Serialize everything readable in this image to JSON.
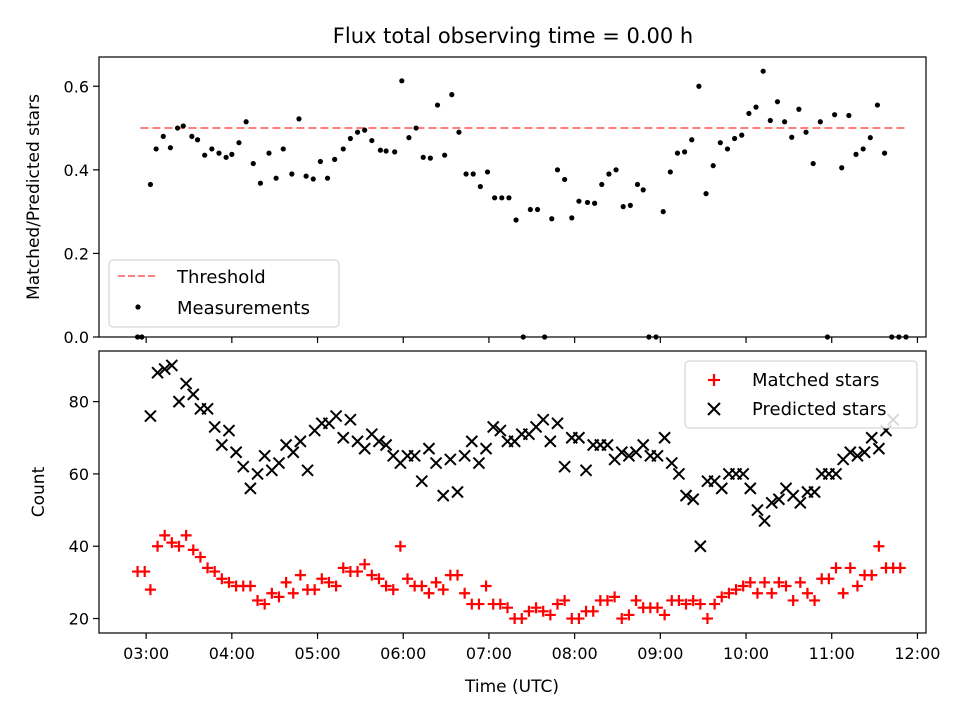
{
  "figure": {
    "title": "Flux total observing time = 0.00 h"
  },
  "chart_data": [
    {
      "type": "scatter",
      "ylabel": "Matched/Predicted stars",
      "xlabel": "",
      "xlim": [
        "02:27",
        "12:06"
      ],
      "ylim": [
        0,
        0.67
      ],
      "yticks": [
        0.0,
        0.2,
        0.4,
        0.6
      ],
      "ytick_labels": [
        "0.0",
        "0.2",
        "0.4",
        "0.6"
      ],
      "xticks": [
        "03:00",
        "04:00",
        "05:00",
        "06:00",
        "07:00",
        "08:00",
        "09:00",
        "10:00",
        "11:00",
        "12:00"
      ],
      "show_xtick_labels": false,
      "grid": false,
      "legend": "lower-left",
      "threshold": {
        "name": "Threshold",
        "value": 0.5,
        "x_range": [
          "02:56",
          "11:53"
        ],
        "color": "#ff7f7f",
        "style": "dashed"
      },
      "series": [
        {
          "name": "Measurements",
          "marker": "dot",
          "color": "#000000",
          "x": [
            "02:54",
            "02:57",
            "03:03",
            "03:07",
            "03:12",
            "03:17",
            "03:22",
            "03:26",
            "03:32",
            "03:36",
            "03:41",
            "03:46",
            "03:51",
            "03:56",
            "04:00",
            "04:05",
            "04:10",
            "04:15",
            "04:20",
            "04:26",
            "04:31",
            "04:36",
            "04:42",
            "04:47",
            "04:52",
            "04:57",
            "05:02",
            "05:07",
            "05:12",
            "05:18",
            "05:23",
            "05:28",
            "05:33",
            "05:38",
            "05:44",
            "05:48",
            "05:54",
            "05:59",
            "06:04",
            "06:09",
            "06:14",
            "06:19",
            "06:24",
            "06:29",
            "06:34",
            "06:39",
            "06:44",
            "06:49",
            "06:54",
            "06:59",
            "07:04",
            "07:09",
            "07:14",
            "07:19",
            "07:24",
            "07:29",
            "07:34",
            "07:39",
            "07:44",
            "07:48",
            "07:53",
            "07:58",
            "08:03",
            "08:09",
            "08:14",
            "08:19",
            "08:24",
            "08:29",
            "08:34",
            "08:39",
            "08:44",
            "08:48",
            "08:52",
            "08:57",
            "09:02",
            "09:07",
            "09:12",
            "09:17",
            "09:22",
            "09:27",
            "09:32",
            "09:37",
            "09:42",
            "09:47",
            "09:52",
            "09:57",
            "10:02",
            "10:07",
            "10:12",
            "10:17",
            "10:22",
            "10:27",
            "10:32",
            "10:37",
            "10:42",
            "10:47",
            "10:52",
            "10:57",
            "11:02",
            "11:07",
            "11:12",
            "11:17",
            "11:22",
            "11:27",
            "11:32",
            "11:37",
            "11:42",
            "11:47",
            "11:52"
          ],
          "y": [
            0.0,
            0.0,
            0.365,
            0.45,
            0.48,
            0.453,
            0.5,
            0.505,
            0.48,
            0.472,
            0.435,
            0.45,
            0.44,
            0.43,
            0.437,
            0.465,
            0.515,
            0.415,
            0.368,
            0.44,
            0.38,
            0.45,
            0.39,
            0.522,
            0.385,
            0.378,
            0.42,
            0.38,
            0.425,
            0.45,
            0.475,
            0.49,
            0.495,
            0.47,
            0.447,
            0.445,
            0.443,
            0.613,
            0.477,
            0.5,
            0.43,
            0.428,
            0.555,
            0.435,
            0.58,
            0.49,
            0.39,
            0.39,
            0.36,
            0.395,
            0.333,
            0.333,
            0.333,
            0.28,
            0.0,
            0.305,
            0.305,
            0.0,
            0.283,
            0.4,
            0.377,
            0.285,
            0.325,
            0.322,
            0.32,
            0.365,
            0.39,
            0.4,
            0.312,
            0.315,
            0.365,
            0.352,
            0.0,
            0.0,
            0.3,
            0.395,
            0.44,
            0.443,
            0.472,
            0.6,
            0.343,
            0.41,
            0.465,
            0.45,
            0.475,
            0.483,
            0.535,
            0.55,
            0.636,
            0.518,
            0.563,
            0.515,
            0.478,
            0.545,
            0.49,
            0.415,
            0.515,
            0.0,
            0.532,
            0.405,
            0.53,
            0.437,
            0.45,
            0.477,
            0.555,
            0.44,
            0.0,
            0.0,
            0.0
          ]
        }
      ]
    },
    {
      "type": "scatter",
      "ylabel": "Count",
      "xlabel": "Time (UTC)",
      "xlim": [
        "02:27",
        "12:06"
      ],
      "ylim": [
        16,
        94
      ],
      "yticks": [
        20,
        40,
        60,
        80
      ],
      "ytick_labels": [
        "20",
        "40",
        "60",
        "80"
      ],
      "xticks": [
        "03:00",
        "04:00",
        "05:00",
        "06:00",
        "07:00",
        "08:00",
        "09:00",
        "10:00",
        "11:00",
        "12:00"
      ],
      "xtick_labels": [
        "03:00",
        "04:00",
        "05:00",
        "06:00",
        "07:00",
        "08:00",
        "09:00",
        "10:00",
        "11:00",
        "12:00"
      ],
      "grid": false,
      "legend": "upper-right",
      "series": [
        {
          "name": "Matched stars",
          "marker": "plus",
          "color": "#ff0000",
          "x": [
            "02:54",
            "02:59",
            "03:03",
            "03:08",
            "03:13",
            "03:18",
            "03:23",
            "03:28",
            "03:33",
            "03:38",
            "03:43",
            "03:48",
            "03:53",
            "03:58",
            "04:03",
            "04:08",
            "04:13",
            "04:18",
            "04:23",
            "04:28",
            "04:33",
            "04:38",
            "04:43",
            "04:48",
            "04:53",
            "04:58",
            "05:03",
            "05:08",
            "05:13",
            "05:18",
            "05:23",
            "05:28",
            "05:33",
            "05:38",
            "05:43",
            "05:48",
            "05:53",
            "05:58",
            "06:03",
            "06:08",
            "06:13",
            "06:18",
            "06:23",
            "06:28",
            "06:33",
            "06:38",
            "06:43",
            "06:48",
            "06:53",
            "06:58",
            "07:03",
            "07:08",
            "07:13",
            "07:18",
            "07:23",
            "07:28",
            "07:33",
            "07:38",
            "07:43",
            "07:48",
            "07:53",
            "07:58",
            "08:03",
            "08:08",
            "08:13",
            "08:18",
            "08:23",
            "08:28",
            "08:33",
            "08:38",
            "08:43",
            "08:48",
            "08:53",
            "08:58",
            "09:03",
            "09:08",
            "09:13",
            "09:18",
            "09:23",
            "09:28",
            "09:33",
            "09:38",
            "09:43",
            "09:48",
            "09:53",
            "09:58",
            "10:03",
            "10:08",
            "10:13",
            "10:18",
            "10:23",
            "10:28",
            "10:33",
            "10:38",
            "10:43",
            "10:48",
            "10:53",
            "10:58",
            "11:03",
            "11:08",
            "11:13",
            "11:18",
            "11:23",
            "11:28",
            "11:33",
            "11:38",
            "11:43",
            "11:48"
          ],
          "y": [
            33,
            33,
            28,
            40,
            43,
            41,
            40,
            43,
            39,
            37,
            34,
            33,
            31,
            30,
            29,
            29,
            29,
            25,
            24,
            27,
            26,
            30,
            27,
            32,
            28,
            28,
            31,
            30,
            29,
            34,
            33,
            33,
            35,
            32,
            31,
            29,
            28,
            40,
            31,
            29,
            29,
            27,
            30,
            28,
            32,
            32,
            27,
            24,
            24,
            29,
            24,
            24,
            23,
            20,
            20,
            22,
            23,
            22,
            21,
            24,
            25,
            20,
            20,
            22,
            22,
            25,
            25,
            26,
            20,
            21,
            25,
            23,
            23,
            23,
            21,
            25,
            25,
            24,
            25,
            24,
            20,
            24,
            26,
            27,
            28,
            29,
            30,
            27,
            30,
            27,
            30,
            29,
            25,
            30,
            27,
            25,
            31,
            31,
            34,
            27,
            34,
            29,
            32,
            32,
            40,
            34,
            34,
            34
          ]
        },
        {
          "name": "Predicted stars",
          "marker": "x",
          "color": "#000000",
          "x": [
            "03:03",
            "03:08",
            "03:13",
            "03:18",
            "03:23",
            "03:28",
            "03:33",
            "03:38",
            "03:43",
            "03:48",
            "03:53",
            "03:58",
            "04:03",
            "04:08",
            "04:13",
            "04:18",
            "04:23",
            "04:28",
            "04:33",
            "04:38",
            "04:43",
            "04:48",
            "04:53",
            "04:58",
            "05:03",
            "05:08",
            "05:13",
            "05:18",
            "05:23",
            "05:28",
            "05:33",
            "05:38",
            "05:43",
            "05:48",
            "05:53",
            "05:58",
            "06:03",
            "06:08",
            "06:13",
            "06:18",
            "06:23",
            "06:28",
            "06:33",
            "06:38",
            "06:43",
            "06:48",
            "06:53",
            "06:58",
            "07:03",
            "07:08",
            "07:13",
            "07:18",
            "07:23",
            "07:28",
            "07:33",
            "07:38",
            "07:43",
            "07:48",
            "07:53",
            "07:58",
            "08:03",
            "08:08",
            "08:13",
            "08:18",
            "08:23",
            "08:28",
            "08:33",
            "08:38",
            "08:43",
            "08:48",
            "08:53",
            "08:58",
            "09:03",
            "09:08",
            "09:13",
            "09:18",
            "09:23",
            "09:28",
            "09:33",
            "09:38",
            "09:43",
            "09:48",
            "09:53",
            "09:58",
            "10:03",
            "10:08",
            "10:13",
            "10:18",
            "10:23",
            "10:28",
            "10:33",
            "10:38",
            "10:43",
            "10:48",
            "10:53",
            "10:58",
            "11:03",
            "11:08",
            "11:13",
            "11:18",
            "11:23",
            "11:28",
            "11:33",
            "11:38",
            "11:43"
          ],
          "y": [
            76,
            88,
            89,
            90,
            80,
            85,
            82,
            78,
            78,
            73,
            68,
            72,
            66,
            62,
            56,
            60,
            65,
            61,
            63,
            68,
            66,
            69,
            61,
            72,
            74,
            74,
            76,
            70,
            75,
            69,
            67,
            71,
            69,
            68,
            65,
            63,
            65,
            65,
            58,
            67,
            63,
            54,
            64,
            55,
            65,
            69,
            63,
            67,
            73,
            72,
            69,
            69,
            71,
            71,
            73,
            75,
            69,
            74,
            62,
            70,
            70,
            61,
            68,
            68,
            68,
            64,
            66,
            65,
            66,
            68,
            65,
            65,
            70,
            63,
            60,
            54,
            53,
            40,
            58,
            58,
            56,
            60,
            60,
            60,
            56,
            50,
            47,
            52,
            53,
            56,
            54,
            52,
            55,
            55,
            60,
            60,
            60,
            64,
            66,
            65,
            66,
            70,
            67,
            72,
            75
          ]
        }
      ]
    }
  ]
}
